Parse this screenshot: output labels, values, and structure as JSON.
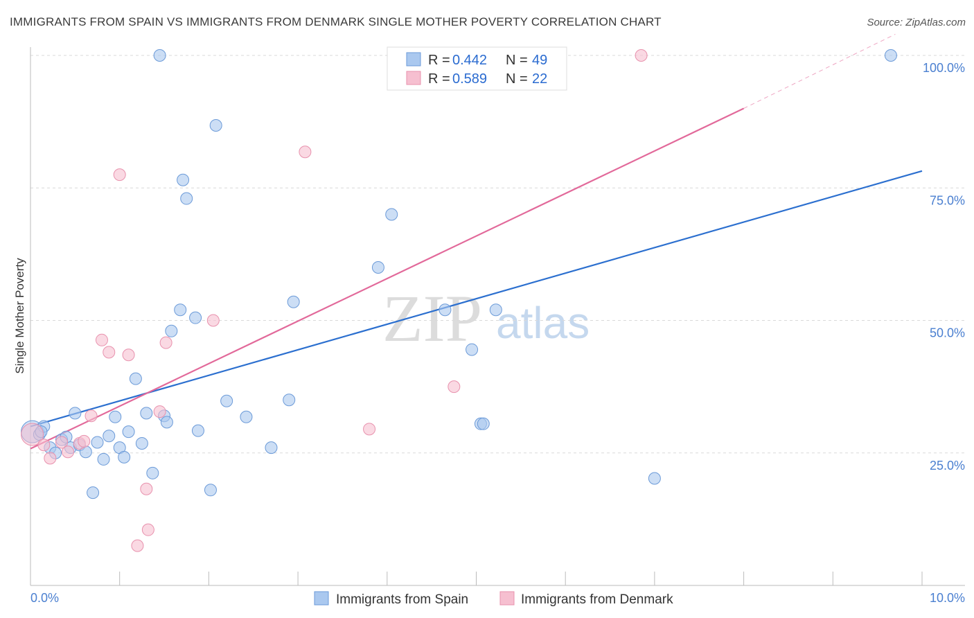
{
  "title": "IMMIGRANTS FROM SPAIN VS IMMIGRANTS FROM DENMARK SINGLE MOTHER POVERTY CORRELATION CHART",
  "source": "Source: ZipAtlas.com",
  "watermark": {
    "zip": "ZIP",
    "atlas": "atlas"
  },
  "legend": {
    "r_label": "R =",
    "n_label": "N =",
    "entries": [
      {
        "r": "0.442",
        "n": "49"
      },
      {
        "r": "0.589",
        "n": "22"
      }
    ]
  },
  "colors": {
    "spain_fill": "#aac8ef",
    "spain_stroke": "#6b9ad8",
    "spain_line": "#2b6fcf",
    "denmark_fill": "#f6bfd0",
    "denmark_stroke": "#e891ad",
    "denmark_line": "#e2699a",
    "grid": "#d9d9d9",
    "axis": "#bbbbbb"
  },
  "chart_data": {
    "type": "scatter",
    "title": "IMMIGRANTS FROM SPAIN VS IMMIGRANTS FROM DENMARK SINGLE MOTHER POVERTY CORRELATION CHART",
    "xlabel": "",
    "ylabel": "Single Mother Poverty",
    "xlim": [
      0,
      10
    ],
    "ylim": [
      0,
      102
    ],
    "x_tick_labels": [
      "0.0%",
      "10.0%"
    ],
    "y_tick_labels": [
      "25.0%",
      "50.0%",
      "75.0%",
      "100.0%"
    ],
    "y_ticks": [
      25,
      50,
      75,
      100
    ],
    "series": [
      {
        "name": "Immigrants from Spain",
        "r": 0.442,
        "n": 49,
        "trend": {
          "x0": 0,
          "y0": 30.0,
          "x1": 10,
          "y1": 78.2
        },
        "points": [
          {
            "x": 0.02,
            "y": 29.0,
            "big": true
          },
          {
            "x": 0.1,
            "y": 28.5
          },
          {
            "x": 0.15,
            "y": 30.0
          },
          {
            "x": 0.22,
            "y": 26.0
          },
          {
            "x": 0.28,
            "y": 25.0
          },
          {
            "x": 0.35,
            "y": 27.5
          },
          {
            "x": 0.4,
            "y": 28.0
          },
          {
            "x": 0.45,
            "y": 26.0
          },
          {
            "x": 0.5,
            "y": 32.5
          },
          {
            "x": 0.55,
            "y": 26.5
          },
          {
            "x": 0.62,
            "y": 25.2
          },
          {
            "x": 0.7,
            "y": 17.5
          },
          {
            "x": 0.75,
            "y": 27.0
          },
          {
            "x": 0.82,
            "y": 23.8
          },
          {
            "x": 0.88,
            "y": 28.2
          },
          {
            "x": 0.95,
            "y": 31.8
          },
          {
            "x": 1.0,
            "y": 26.0
          },
          {
            "x": 1.05,
            "y": 24.2
          },
          {
            "x": 1.1,
            "y": 29.0
          },
          {
            "x": 1.18,
            "y": 39.0
          },
          {
            "x": 1.25,
            "y": 26.8
          },
          {
            "x": 1.3,
            "y": 32.5
          },
          {
            "x": 1.37,
            "y": 21.2
          },
          {
            "x": 1.45,
            "y": 100.0
          },
          {
            "x": 1.5,
            "y": 32.0
          },
          {
            "x": 1.53,
            "y": 30.8
          },
          {
            "x": 1.58,
            "y": 48.0
          },
          {
            "x": 1.68,
            "y": 52.0
          },
          {
            "x": 1.71,
            "y": 76.5
          },
          {
            "x": 1.75,
            "y": 73.0
          },
          {
            "x": 1.85,
            "y": 50.5
          },
          {
            "x": 1.88,
            "y": 29.2
          },
          {
            "x": 2.02,
            "y": 18.0
          },
          {
            "x": 2.08,
            "y": 86.8
          },
          {
            "x": 2.2,
            "y": 34.8
          },
          {
            "x": 2.42,
            "y": 31.8
          },
          {
            "x": 2.7,
            "y": 26.0
          },
          {
            "x": 2.9,
            "y": 35.0
          },
          {
            "x": 2.95,
            "y": 53.5
          },
          {
            "x": 3.9,
            "y": 60.0
          },
          {
            "x": 4.05,
            "y": 70.0
          },
          {
            "x": 4.65,
            "y": 52.0
          },
          {
            "x": 4.95,
            "y": 44.5
          },
          {
            "x": 5.05,
            "y": 30.5
          },
          {
            "x": 5.08,
            "y": 30.5
          },
          {
            "x": 5.22,
            "y": 52.0
          },
          {
            "x": 7.0,
            "y": 20.2
          },
          {
            "x": 9.65,
            "y": 100.0
          },
          {
            "x": 0.12,
            "y": 29.0
          }
        ]
      },
      {
        "name": "Immigrants from Denmark",
        "r": 0.589,
        "n": 22,
        "trend": {
          "x0": 0,
          "y0": 25.8,
          "x1": 8.0,
          "y1": 90.0,
          "x_dash_end": 9.7,
          "y_dash_end": 104.0
        },
        "points": [
          {
            "x": 0.02,
            "y": 28.5,
            "big": true
          },
          {
            "x": 0.15,
            "y": 26.5
          },
          {
            "x": 0.22,
            "y": 24.0
          },
          {
            "x": 0.35,
            "y": 27.0
          },
          {
            "x": 0.42,
            "y": 25.2
          },
          {
            "x": 0.55,
            "y": 26.8
          },
          {
            "x": 0.68,
            "y": 32.0
          },
          {
            "x": 0.8,
            "y": 46.3
          },
          {
            "x": 0.88,
            "y": 44.0
          },
          {
            "x": 1.0,
            "y": 77.5
          },
          {
            "x": 1.1,
            "y": 43.5
          },
          {
            "x": 1.3,
            "y": 18.2
          },
          {
            "x": 1.32,
            "y": 10.5
          },
          {
            "x": 1.2,
            "y": 7.5
          },
          {
            "x": 1.45,
            "y": 32.8
          },
          {
            "x": 1.52,
            "y": 45.8
          },
          {
            "x": 2.05,
            "y": 50.0
          },
          {
            "x": 3.08,
            "y": 81.8
          },
          {
            "x": 3.8,
            "y": 29.5
          },
          {
            "x": 4.75,
            "y": 37.5
          },
          {
            "x": 6.85,
            "y": 100.0
          },
          {
            "x": 0.6,
            "y": 27.2
          }
        ]
      }
    ],
    "legend_position": "top-center"
  }
}
